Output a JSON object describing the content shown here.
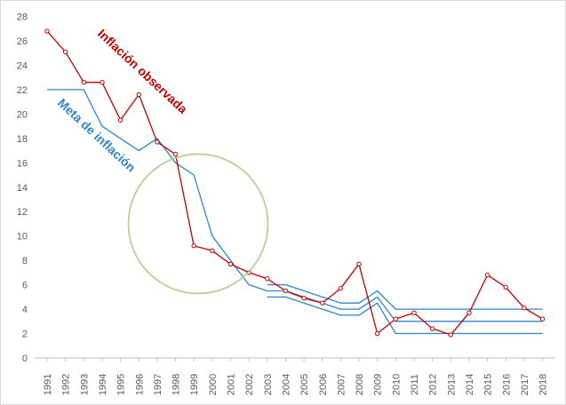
{
  "chart_data": {
    "type": "line",
    "title": "",
    "xlabel": "",
    "ylabel": "",
    "ylim": [
      0,
      28
    ],
    "yticks": [
      0,
      2,
      4,
      6,
      8,
      10,
      12,
      14,
      16,
      18,
      20,
      22,
      24,
      26,
      28
    ],
    "grid": false,
    "legend": "none",
    "x": [
      "1991",
      "1992",
      "1993",
      "1994",
      "1995",
      "1996",
      "1997",
      "1998",
      "1999",
      "2000",
      "2001",
      "2002",
      "2003",
      "2004",
      "2005",
      "2006",
      "2007",
      "2008",
      "2009",
      "2010",
      "2011",
      "2012",
      "2013",
      "2014",
      "2015",
      "2016",
      "2017",
      "2018"
    ],
    "series": [
      {
        "name": "Inflación observada",
        "color": "#c00000",
        "markers": true,
        "values": [
          26.8,
          25.1,
          22.6,
          22.6,
          19.5,
          21.6,
          17.7,
          16.7,
          9.2,
          8.8,
          7.7,
          7.0,
          6.5,
          5.5,
          4.9,
          4.5,
          5.7,
          7.7,
          2.0,
          3.2,
          3.7,
          2.4,
          1.9,
          3.7,
          6.8,
          5.8,
          4.1,
          3.2
        ]
      },
      {
        "name": "Meta de inflación",
        "color": "#2e86c9",
        "markers": false,
        "values": [
          22,
          22,
          22,
          19,
          18,
          17,
          18,
          16,
          15,
          10,
          8,
          6,
          5.5,
          5.5,
          5,
          4.5,
          4,
          4,
          5,
          3,
          3,
          3,
          3,
          3,
          3,
          3,
          3,
          3
        ]
      },
      {
        "name": "",
        "color": "#2e86c9",
        "markers": false,
        "values": [
          null,
          null,
          null,
          null,
          null,
          null,
          null,
          null,
          null,
          null,
          null,
          null,
          6,
          6,
          5.5,
          5,
          4.5,
          4.5,
          5.5,
          4,
          4,
          4,
          4,
          4,
          4,
          4,
          4,
          4
        ]
      },
      {
        "name": "",
        "color": "#2e86c9",
        "markers": false,
        "values": [
          null,
          null,
          null,
          null,
          null,
          null,
          null,
          null,
          null,
          null,
          null,
          null,
          5,
          5,
          4.5,
          4,
          3.5,
          3.5,
          4.5,
          2,
          2,
          2,
          2,
          2,
          2,
          2,
          2,
          2
        ]
      }
    ],
    "annotations": [
      {
        "text": "Inflación observada",
        "color": "#c00000"
      },
      {
        "text": "Meta de inflación",
        "color": "#2e86c9"
      }
    ],
    "highlight_circle": {
      "color": "#b5c98a",
      "center_x": "1998.2",
      "center_y": 11.0,
      "radius_y": 5.5
    }
  }
}
